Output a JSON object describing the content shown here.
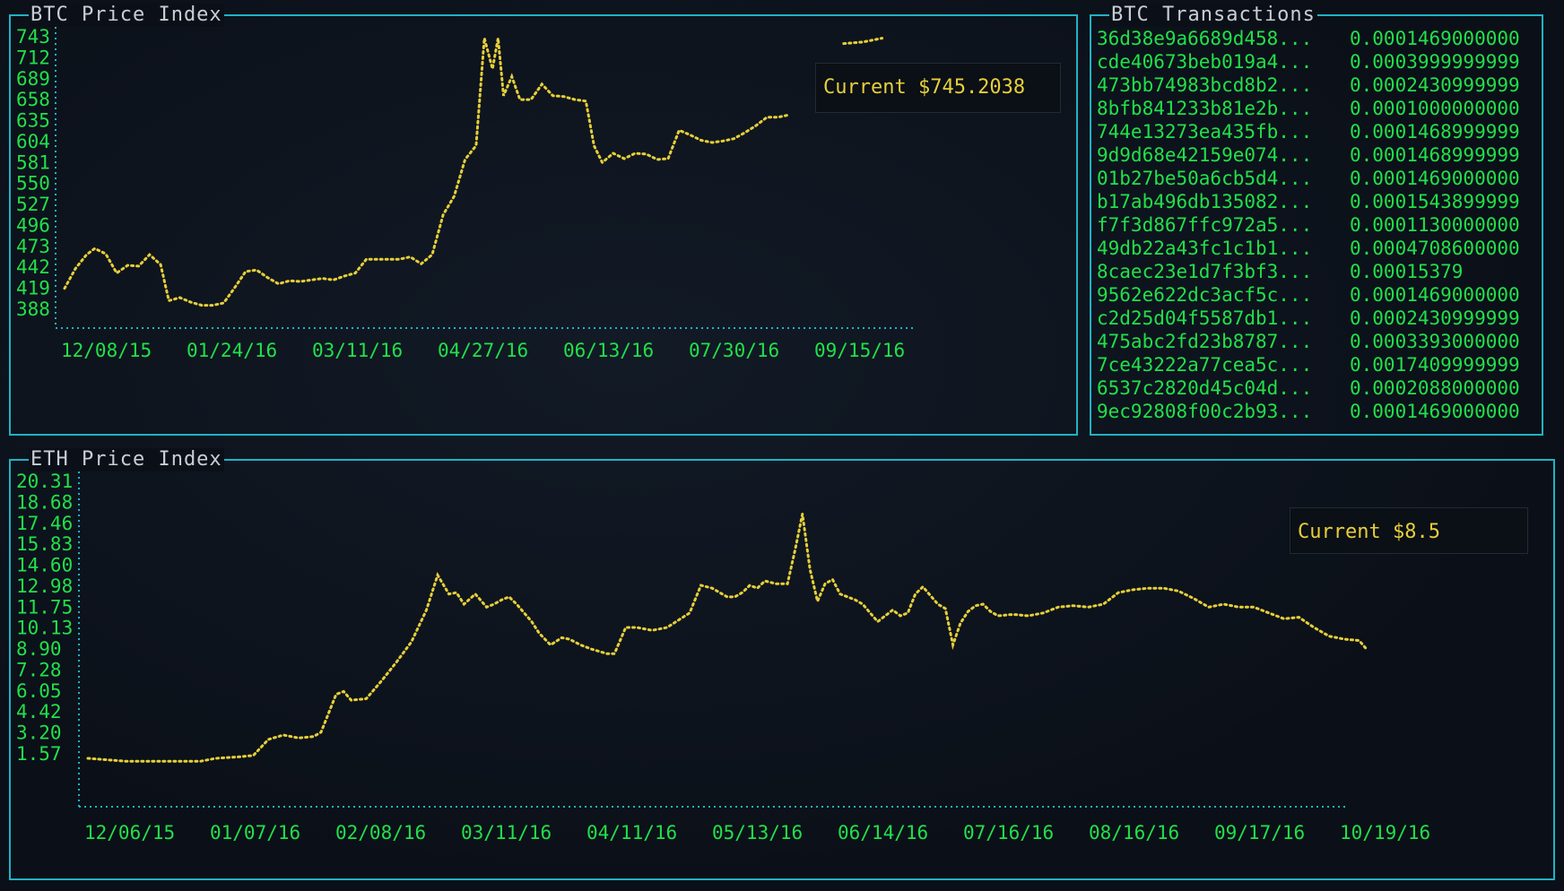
{
  "colors": {
    "border": "#1fb3c4",
    "axis": "#1fb3c4",
    "label": "#22e04a",
    "series": "#e6cf3a",
    "title": "#c8ced6"
  },
  "btc": {
    "panel_title": "BTC Price Index",
    "current_label": "Current $745.2038"
  },
  "eth": {
    "panel_title": "ETH Price Index",
    "current_label": "Current $8.5"
  },
  "transactions": {
    "panel_title": "BTC Transactions",
    "rows": [
      {
        "hash": "36d38e9a6689d458...",
        "amount": "0.0001469000000"
      },
      {
        "hash": "cde40673beb019a4...",
        "amount": "0.0003999999999"
      },
      {
        "hash": "473bb74983bcd8b2...",
        "amount": "0.0002430999999"
      },
      {
        "hash": "8bfb841233b81e2b...",
        "amount": "0.0001000000000"
      },
      {
        "hash": "744e13273ea435fb...",
        "amount": "0.0001468999999"
      },
      {
        "hash": "9d9d68e42159e074...",
        "amount": "0.0001468999999"
      },
      {
        "hash": "01b27be50a6cb5d4...",
        "amount": "0.0001469000000"
      },
      {
        "hash": "b17ab496db135082...",
        "amount": "0.0001543899999"
      },
      {
        "hash": "f7f3d867ffc972a5...",
        "amount": "0.0001130000000"
      },
      {
        "hash": "49db22a43fc1c1b1...",
        "amount": "0.0004708600000"
      },
      {
        "hash": "8caec23e1d7f3bf3...",
        "amount": "0.00015379"
      },
      {
        "hash": "9562e622dc3acf5c...",
        "amount": "0.0001469000000"
      },
      {
        "hash": "c2d25d04f5587db1...",
        "amount": "0.0002430999999"
      },
      {
        "hash": "475abc2fd23b8787...",
        "amount": "0.0003393000000"
      },
      {
        "hash": "7ce43222a77cea5c...",
        "amount": "0.0017409999999"
      },
      {
        "hash": "6537c2820d45c04d...",
        "amount": "0.0002088000000"
      },
      {
        "hash": "9ec92808f00c2b93...",
        "amount": "0.0001469000000"
      }
    ]
  },
  "chart_data": [
    {
      "type": "line",
      "title": "BTC Price Index",
      "y_ticks": [
        "743",
        "712",
        "689",
        "658",
        "635",
        "604",
        "581",
        "550",
        "527",
        "496",
        "473",
        "442",
        "419",
        "388"
      ],
      "x_ticks": [
        "12/08/15",
        "01/24/16",
        "03/11/16",
        "04/27/16",
        "06/13/16",
        "07/30/16",
        "09/15/16"
      ],
      "ylim": [
        388,
        743
      ],
      "x_count": 304,
      "series": [
        {
          "values": [
            [
              0,
              414
            ],
            [
              4,
              440
            ],
            [
              8,
              458
            ],
            [
              11,
              466
            ],
            [
              15,
              459
            ],
            [
              19,
              434
            ],
            [
              23,
              444
            ],
            [
              27,
              443
            ],
            [
              31,
              458
            ],
            [
              35,
              445
            ],
            [
              38,
              398
            ],
            [
              42,
              402
            ],
            [
              46,
              396
            ],
            [
              50,
              392
            ],
            [
              54,
              392
            ],
            [
              58,
              395
            ],
            [
              62,
              415
            ],
            [
              66,
              436
            ],
            [
              70,
              438
            ],
            [
              74,
              428
            ],
            [
              78,
              420
            ],
            [
              82,
              424
            ],
            [
              86,
              423
            ],
            [
              90,
              425
            ],
            [
              94,
              427
            ],
            [
              98,
              425
            ],
            [
              102,
              430
            ],
            [
              106,
              434
            ],
            [
              110,
              452
            ],
            [
              114,
              452
            ],
            [
              118,
              452
            ],
            [
              122,
              452
            ],
            [
              126,
              455
            ],
            [
              130,
              446
            ],
            [
              134,
              458
            ],
            [
              138,
              510
            ],
            [
              142,
              534
            ],
            [
              146,
              582
            ],
            [
              150,
              600
            ],
            [
              153,
              740
            ],
            [
              156,
              700
            ],
            [
              158,
              740
            ],
            [
              160,
              665
            ],
            [
              163,
              690
            ],
            [
              166,
              660
            ],
            [
              170,
              660
            ],
            [
              174,
              680
            ],
            [
              178,
              665
            ],
            [
              182,
              664
            ],
            [
              186,
              660
            ],
            [
              190,
              658
            ],
            [
              193,
              600
            ],
            [
              196,
              578
            ],
            [
              200,
              590
            ],
            [
              204,
              583
            ],
            [
              208,
              590
            ],
            [
              212,
              589
            ],
            [
              216,
              582
            ],
            [
              220,
              583
            ],
            [
              224,
              620
            ],
            [
              228,
              614
            ],
            [
              232,
              607
            ],
            [
              236,
              604
            ],
            [
              240,
              606
            ],
            [
              244,
              609
            ],
            [
              248,
              617
            ],
            [
              252,
              626
            ],
            [
              256,
              637
            ],
            [
              260,
              637
            ],
            [
              264,
              640
            ]
          ]
        },
        {
          "values": [
            [
              284,
              733
            ],
            [
              291,
              735
            ],
            [
              298,
              740
            ]
          ]
        }
      ]
    },
    {
      "type": "line",
      "title": "ETH Price Index",
      "y_ticks": [
        "20.31",
        "18.68",
        "17.46",
        "15.83",
        "14.60",
        "12.98",
        "11.75",
        "10.13",
        "8.90",
        "7.28",
        "6.05",
        "4.42",
        "3.20",
        "1.57"
      ],
      "x_ticks": [
        "12/06/15",
        "01/07/16",
        "02/08/16",
        "03/11/16",
        "04/11/16",
        "05/13/16",
        "06/14/16",
        "07/16/16",
        "08/16/16",
        "09/17/16",
        "10/19/16"
      ],
      "ylim": [
        1.57,
        20.31
      ],
      "x_count": 330,
      "series": [
        {
          "values": [
            [
              0,
              1.2
            ],
            [
              10,
              1.0
            ],
            [
              20,
              1.0
            ],
            [
              30,
              1.0
            ],
            [
              34,
              1.2
            ],
            [
              40,
              1.3
            ],
            [
              44,
              1.4
            ],
            [
              48,
              2.5
            ],
            [
              52,
              2.8
            ],
            [
              56,
              2.6
            ],
            [
              60,
              2.7
            ],
            [
              62,
              3.0
            ],
            [
              66,
              5.6
            ],
            [
              68,
              5.8
            ],
            [
              70,
              5.2
            ],
            [
              74,
              5.3
            ],
            [
              78,
              6.5
            ],
            [
              82,
              7.8
            ],
            [
              86,
              9.2
            ],
            [
              90,
              11.4
            ],
            [
              93,
              13.8
            ],
            [
              96,
              12.5
            ],
            [
              98,
              12.6
            ],
            [
              100,
              11.8
            ],
            [
              103,
              12.5
            ],
            [
              106,
              11.6
            ],
            [
              108,
              11.8
            ],
            [
              110,
              12.1
            ],
            [
              112,
              12.3
            ],
            [
              114,
              11.8
            ],
            [
              116,
              11.2
            ],
            [
              118,
              10.6
            ],
            [
              120,
              9.8
            ],
            [
              123,
              9.0
            ],
            [
              126,
              9.5
            ],
            [
              128,
              9.4
            ],
            [
              131,
              9.0
            ],
            [
              134,
              8.7
            ],
            [
              138,
              8.4
            ],
            [
              140,
              8.4
            ],
            [
              143,
              10.2
            ],
            [
              146,
              10.2
            ],
            [
              150,
              10.0
            ],
            [
              154,
              10.2
            ],
            [
              157,
              10.7
            ],
            [
              160,
              11.2
            ],
            [
              163,
              13.1
            ],
            [
              166,
              12.9
            ],
            [
              168,
              12.6
            ],
            [
              170,
              12.3
            ],
            [
              172,
              12.3
            ],
            [
              174,
              12.6
            ],
            [
              176,
              13.1
            ],
            [
              178,
              12.9
            ],
            [
              180,
              13.4
            ],
            [
              183,
              13.2
            ],
            [
              186,
              13.2
            ],
            [
              188,
              15.5
            ],
            [
              190,
              18.0
            ],
            [
              192,
              14.2
            ],
            [
              194,
              12.0
            ],
            [
              196,
              13.2
            ],
            [
              198,
              13.5
            ],
            [
              200,
              12.5
            ],
            [
              202,
              12.3
            ],
            [
              204,
              12.1
            ],
            [
              206,
              11.8
            ],
            [
              208,
              11.2
            ],
            [
              210,
              10.6
            ],
            [
              212,
              11.0
            ],
            [
              214,
              11.4
            ],
            [
              216,
              11.0
            ],
            [
              218,
              11.2
            ],
            [
              220,
              12.5
            ],
            [
              222,
              13.0
            ],
            [
              224,
              12.4
            ],
            [
              226,
              11.8
            ],
            [
              228,
              11.5
            ],
            [
              230,
              9.0
            ],
            [
              232,
              10.5
            ],
            [
              234,
              11.3
            ],
            [
              236,
              11.7
            ],
            [
              238,
              11.8
            ],
            [
              240,
              11.3
            ],
            [
              242,
              11.0
            ],
            [
              246,
              11.1
            ],
            [
              250,
              11.0
            ],
            [
              254,
              11.2
            ],
            [
              258,
              11.6
            ],
            [
              262,
              11.7
            ],
            [
              266,
              11.6
            ],
            [
              270,
              11.8
            ],
            [
              274,
              12.6
            ],
            [
              278,
              12.8
            ],
            [
              282,
              12.9
            ],
            [
              286,
              12.9
            ],
            [
              290,
              12.7
            ],
            [
              294,
              12.2
            ],
            [
              298,
              11.6
            ],
            [
              302,
              11.8
            ],
            [
              306,
              11.6
            ],
            [
              310,
              11.6
            ],
            [
              314,
              11.2
            ],
            [
              318,
              10.8
            ],
            [
              322,
              10.9
            ],
            [
              326,
              10.2
            ],
            [
              330,
              9.6
            ],
            [
              334,
              9.4
            ],
            [
              338,
              9.3
            ],
            [
              340,
              8.7
            ]
          ]
        }
      ]
    }
  ]
}
